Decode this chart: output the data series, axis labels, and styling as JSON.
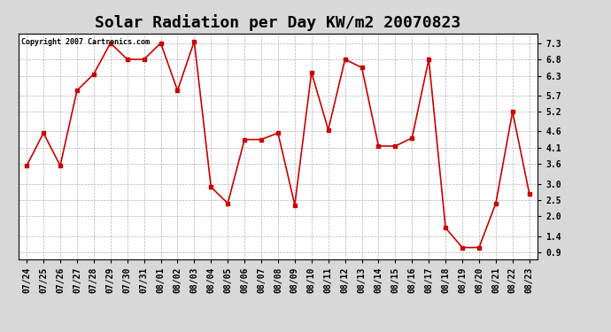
{
  "title": "Solar Radiation per Day KW/m2 20070823",
  "copyright_text": "Copyright 2007 Cartronics.com",
  "dates": [
    "07/24",
    "07/25",
    "07/26",
    "07/27",
    "07/28",
    "07/29",
    "07/30",
    "07/31",
    "08/01",
    "08/02",
    "08/03",
    "08/04",
    "08/05",
    "08/06",
    "08/07",
    "08/08",
    "08/09",
    "08/10",
    "08/11",
    "08/12",
    "08/13",
    "08/14",
    "08/15",
    "08/16",
    "08/17",
    "08/18",
    "08/19",
    "08/20",
    "08/21",
    "08/22",
    "08/23"
  ],
  "values": [
    3.55,
    4.55,
    3.55,
    5.85,
    6.35,
    7.3,
    6.8,
    6.8,
    7.3,
    5.85,
    7.35,
    2.9,
    2.4,
    4.35,
    4.35,
    4.55,
    2.35,
    6.4,
    4.65,
    6.8,
    6.55,
    4.15,
    4.15,
    4.4,
    6.8,
    1.65,
    1.05,
    1.05,
    2.4,
    5.2,
    2.7
  ],
  "line_color": "#cc0000",
  "marker": "s",
  "marker_size": 3,
  "background_color": "#d8d8d8",
  "plot_bg_color": "#ffffff",
  "grid_color": "#aaaaaa",
  "ylim": [
    0.7,
    7.6
  ],
  "yticks": [
    0.9,
    1.4,
    2.0,
    2.5,
    3.0,
    3.6,
    4.1,
    4.6,
    5.2,
    5.7,
    6.3,
    6.8,
    7.3
  ],
  "title_fontsize": 13,
  "tick_fontsize": 7,
  "copyright_fontsize": 6
}
